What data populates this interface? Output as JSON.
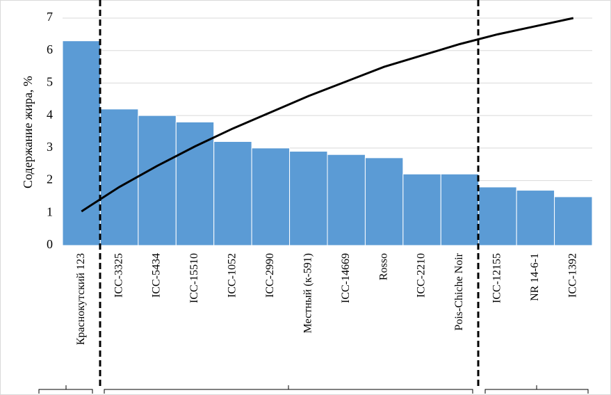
{
  "chart_data": {
    "type": "bar",
    "y_label": "Содержание жира, %",
    "categories": [
      "Краснокутский 123",
      "ICC-3325",
      "ICC-5434",
      "ICC-15510",
      "ICC-1052",
      "ICC-2990",
      "Местный (к-591)",
      "ICC-14669",
      "Rosso",
      "ICC-2210",
      "Pois-Chiche Noir",
      "ICC-12155",
      "NR 14-6-1",
      "ICC-1392"
    ],
    "series": [
      {
        "type": "bar",
        "color": "#5b9bd5",
        "values": [
          6.3,
          4.2,
          4.0,
          3.8,
          3.2,
          3.0,
          2.9,
          2.8,
          2.7,
          2.2,
          2.2,
          1.8,
          1.7,
          1.5
        ]
      },
      {
        "type": "line",
        "color": "#000000",
        "values": [
          1.05,
          1.8,
          2.45,
          3.05,
          3.6,
          4.1,
          4.6,
          5.05,
          5.5,
          5.85,
          6.2,
          6.5,
          6.75,
          7.0
        ]
      }
    ],
    "ylim": [
      0,
      7
    ],
    "yticks": [
      0,
      1,
      2,
      3,
      4,
      5,
      6,
      7
    ],
    "grid": true
  }
}
